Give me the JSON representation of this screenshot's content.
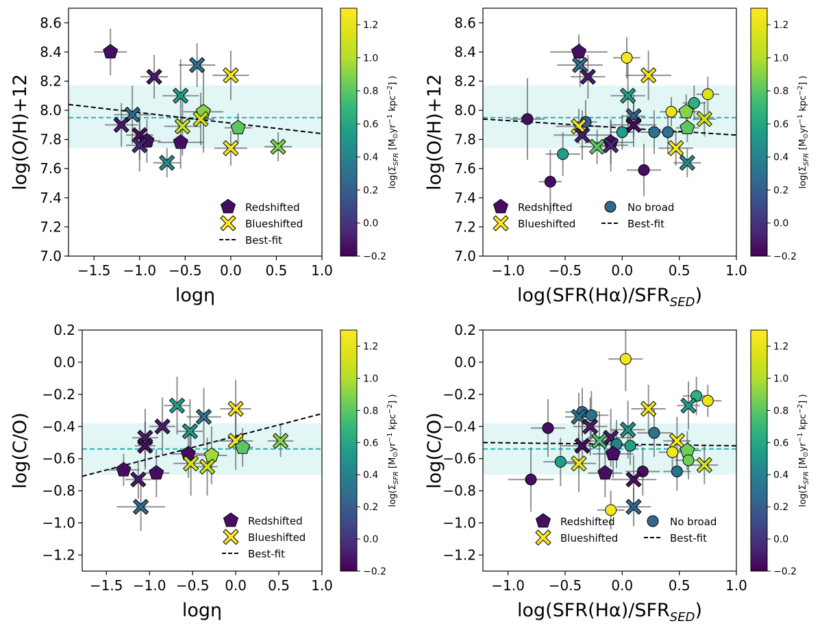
{
  "colorbar": {
    "label": "log(Σ",
    "label_sub": "SFR",
    "label_rest": " [M",
    "label_sun": "⊙",
    "label_tail": "yr",
    "label_exp1": "−1",
    "label_mid": " kpc",
    "label_exp2": "−2",
    "label_end": "] )",
    "range": [
      -0.2,
      1.3
    ],
    "ticks": [
      -0.2,
      0.0,
      0.2,
      0.4,
      0.6,
      0.8,
      1.0,
      1.2
    ],
    "tick_labels": [
      "−0.2",
      "0.0",
      "0.2",
      "0.4",
      "0.6",
      "0.8",
      "1.0",
      "1.2"
    ],
    "colormap": "viridis"
  },
  "legend": {
    "redshifted": "Redshifted",
    "blueshifted": "Blueshifted",
    "no_broad": "No broad",
    "best_fit": "Best-fit"
  },
  "colors": {
    "band_fill": "#e0f5f5",
    "mean_line": "#20b2aa",
    "fit_line": "#000000",
    "errorbar": "#555555"
  },
  "chart_data": [
    {
      "id": "oh-vs-eta",
      "type": "scatter",
      "xlabel": "logη",
      "ylabel": "log(O/H)+12",
      "xlim": [
        -1.78,
        1.0
      ],
      "ylim": [
        7.0,
        8.7
      ],
      "xticks": [
        -1.5,
        -1.0,
        -0.5,
        0.0,
        0.5,
        1.0
      ],
      "xtick_labels": [
        "−1.5",
        "−1.0",
        "−0.5",
        "0.0",
        "0.5",
        "1.0"
      ],
      "yticks": [
        7.0,
        7.2,
        7.4,
        7.6,
        7.8,
        8.0,
        8.2,
        8.4,
        8.6
      ],
      "ytick_labels": [
        "7.0",
        "7.2",
        "7.4",
        "7.6",
        "7.8",
        "8.0",
        "8.2",
        "8.4",
        "8.6"
      ],
      "band": [
        7.74,
        8.17
      ],
      "mean": 7.95,
      "fit": {
        "x0": -1.78,
        "y0": 8.04,
        "x1": 1.0,
        "y1": 7.84
      },
      "legend_items": [
        "redshifted",
        "blueshifted",
        "best_fit"
      ],
      "points": [
        {
          "x": -1.32,
          "y": 8.4,
          "c": -0.15,
          "m": "pentagon",
          "ex": 0.18,
          "ey": 0.16
        },
        {
          "x": -0.84,
          "y": 8.23,
          "c": -0.1,
          "m": "x",
          "ex": 0.15,
          "ey": 0.15
        },
        {
          "x": -0.37,
          "y": 8.31,
          "c": 0.3,
          "m": "x",
          "ex": 0.2,
          "ey": 0.15
        },
        {
          "x": 0.0,
          "y": 8.24,
          "c": 1.25,
          "m": "x",
          "ex": 0.2,
          "ey": 0.17
        },
        {
          "x": -0.55,
          "y": 8.1,
          "c": 0.55,
          "m": "x",
          "ex": 0.2,
          "ey": 0.25
        },
        {
          "x": -1.08,
          "y": 7.97,
          "c": 0.25,
          "m": "x",
          "ex": 0.2,
          "ey": 0.2
        },
        {
          "x": -1.2,
          "y": 7.9,
          "c": -0.1,
          "m": "x",
          "ex": 0.18,
          "ey": 0.15
        },
        {
          "x": -1.0,
          "y": 7.83,
          "c": -0.15,
          "m": "x",
          "ex": 0.15,
          "ey": 0.17
        },
        {
          "x": -0.92,
          "y": 7.79,
          "c": -0.15,
          "m": "pentagon",
          "ex": 0.15,
          "ey": 0.15
        },
        {
          "x": -1.0,
          "y": 7.76,
          "c": -0.05,
          "m": "x",
          "ex": 0.15,
          "ey": 0.18
        },
        {
          "x": -0.7,
          "y": 7.64,
          "c": 0.45,
          "m": "x",
          "ex": 0.15,
          "ey": 0.1
        },
        {
          "x": -0.55,
          "y": 7.78,
          "c": -0.15,
          "m": "pentagon",
          "ex": 0.25,
          "ey": 0.18
        },
        {
          "x": -0.53,
          "y": 7.89,
          "c": 1.05,
          "m": "x",
          "ex": 0.2,
          "ey": 0.2
        },
        {
          "x": -0.3,
          "y": 7.99,
          "c": 0.9,
          "m": "pentagon",
          "ex": 0.22,
          "ey": 0.28
        },
        {
          "x": -0.33,
          "y": 7.94,
          "c": 1.1,
          "m": "x",
          "ex": 0.15,
          "ey": 0.18
        },
        {
          "x": 0.08,
          "y": 7.88,
          "c": 0.8,
          "m": "pentagon",
          "ex": 0.15,
          "ey": 0.1
        },
        {
          "x": 0.0,
          "y": 7.74,
          "c": 1.25,
          "m": "x",
          "ex": 0.18,
          "ey": 0.12
        },
        {
          "x": 0.52,
          "y": 7.75,
          "c": 0.88,
          "m": "x",
          "ex": 0.15,
          "ey": 0.1
        }
      ]
    },
    {
      "id": "oh-vs-sfr",
      "type": "scatter",
      "xlabel": "log(SFR(Hα)/SFR",
      "xlabel_sub": "SED",
      "xlabel_end": ")",
      "ylabel": "log(O/H)+12",
      "xlim": [
        -1.22,
        1.0
      ],
      "ylim": [
        7.0,
        8.7
      ],
      "xticks": [
        -1.0,
        -0.5,
        0.0,
        0.5,
        1.0
      ],
      "xtick_labels": [
        "−1.0",
        "−0.5",
        "0.0",
        "0.5",
        "1.0"
      ],
      "yticks": [
        7.0,
        7.2,
        7.4,
        7.6,
        7.8,
        8.0,
        8.2,
        8.4,
        8.6
      ],
      "ytick_labels": [
        "7.0",
        "7.2",
        "7.4",
        "7.6",
        "7.8",
        "8.0",
        "8.2",
        "8.4",
        "8.6"
      ],
      "band": [
        7.74,
        8.17
      ],
      "mean": 7.95,
      "fit": {
        "x0": -1.22,
        "y0": 7.94,
        "x1": 1.0,
        "y1": 7.83
      },
      "legend_items": [
        "redshifted",
        "no_broad",
        "blueshifted",
        "best_fit"
      ],
      "points": [
        {
          "x": -0.38,
          "y": 8.4,
          "c": -0.15,
          "m": "pentagon",
          "ex": 0.25,
          "ey": 0.12
        },
        {
          "x": -0.37,
          "y": 8.31,
          "c": 0.3,
          "m": "x",
          "ex": 0.2,
          "ey": 0.15
        },
        {
          "x": -0.3,
          "y": 8.23,
          "c": -0.1,
          "m": "x",
          "ex": 0.15,
          "ey": 0.15
        },
        {
          "x": 0.04,
          "y": 8.36,
          "c": 1.25,
          "m": "circle",
          "ex": 0.12,
          "ey": 0.14
        },
        {
          "x": 0.23,
          "y": 8.24,
          "c": 1.25,
          "m": "x",
          "ex": 0.2,
          "ey": 0.17
        },
        {
          "x": 0.05,
          "y": 8.1,
          "c": 0.55,
          "m": "x",
          "ex": 0.15,
          "ey": 0.25
        },
        {
          "x": 0.75,
          "y": 8.11,
          "c": 1.15,
          "m": "circle",
          "ex": 0.1,
          "ey": 0.12
        },
        {
          "x": 0.63,
          "y": 8.05,
          "c": 0.65,
          "m": "circle",
          "ex": 0.1,
          "ey": 0.12
        },
        {
          "x": 0.43,
          "y": 7.99,
          "c": 1.2,
          "m": "circle",
          "ex": 0.1,
          "ey": 0.1
        },
        {
          "x": 0.56,
          "y": 7.99,
          "c": 0.9,
          "m": "pentagon",
          "ex": 0.12,
          "ey": 0.12
        },
        {
          "x": -0.83,
          "y": 7.94,
          "c": -0.15,
          "m": "circle",
          "ex": 0.15,
          "ey": 0.28
        },
        {
          "x": -0.32,
          "y": 7.92,
          "c": 0.2,
          "m": "circle",
          "ex": 0.1,
          "ey": 0.15
        },
        {
          "x": 0.1,
          "y": 7.96,
          "c": 0.2,
          "m": "x",
          "ex": 0.1,
          "ey": 0.15
        },
        {
          "x": 0.1,
          "y": 7.9,
          "c": -0.15,
          "m": "x",
          "ex": 0.2,
          "ey": 0.15
        },
        {
          "x": 0.72,
          "y": 7.94,
          "c": 1.1,
          "m": "x",
          "ex": 0.1,
          "ey": 0.12
        },
        {
          "x": -0.38,
          "y": 7.89,
          "c": 1.2,
          "m": "x",
          "ex": 0.2,
          "ey": 0.12
        },
        {
          "x": -0.35,
          "y": 7.83,
          "c": -0.1,
          "m": "x",
          "ex": 0.25,
          "ey": 0.17
        },
        {
          "x": 0.0,
          "y": 7.85,
          "c": 0.55,
          "m": "circle",
          "ex": 0.1,
          "ey": 0.12
        },
        {
          "x": 0.28,
          "y": 7.85,
          "c": 0.3,
          "m": "circle",
          "ex": 0.12,
          "ey": 0.15
        },
        {
          "x": 0.4,
          "y": 7.85,
          "c": 0.3,
          "m": "circle",
          "ex": 0.15,
          "ey": 0.15
        },
        {
          "x": 0.57,
          "y": 7.88,
          "c": 0.8,
          "m": "pentagon",
          "ex": 0.1,
          "ey": 0.1
        },
        {
          "x": -0.1,
          "y": 7.78,
          "c": -0.15,
          "m": "pentagon",
          "ex": 0.2,
          "ey": 0.15
        },
        {
          "x": -0.22,
          "y": 7.75,
          "c": 0.8,
          "m": "x",
          "ex": 0.15,
          "ey": 0.12
        },
        {
          "x": -0.1,
          "y": 7.76,
          "c": -0.05,
          "m": "x",
          "ex": 0.15,
          "ey": 0.18
        },
        {
          "x": 0.47,
          "y": 7.74,
          "c": 1.25,
          "m": "x",
          "ex": 0.15,
          "ey": 0.12
        },
        {
          "x": -0.52,
          "y": 7.7,
          "c": 0.55,
          "m": "circle",
          "ex": 0.15,
          "ey": 0.15
        },
        {
          "x": 0.57,
          "y": 7.64,
          "c": 0.45,
          "m": "x",
          "ex": 0.12,
          "ey": 0.1
        },
        {
          "x": 0.19,
          "y": 7.59,
          "c": -0.15,
          "m": "circle",
          "ex": 0.15,
          "ey": 0.18
        },
        {
          "x": -0.63,
          "y": 7.51,
          "c": -0.15,
          "m": "circle",
          "ex": 0.1,
          "ey": 0.22
        }
      ]
    },
    {
      "id": "co-vs-eta",
      "type": "scatter",
      "xlabel": "logη",
      "ylabel": "log(C/O)",
      "xlim": [
        -1.78,
        1.0
      ],
      "ylim": [
        -1.3,
        0.2
      ],
      "xticks": [
        -1.5,
        -1.0,
        -0.5,
        0.0,
        0.5,
        1.0
      ],
      "xtick_labels": [
        "−1.5",
        "−1.0",
        "−0.5",
        "0.0",
        "0.5",
        "1.0"
      ],
      "yticks": [
        -1.2,
        -1.0,
        -0.8,
        -0.6,
        -0.4,
        -0.2,
        0.0,
        0.2
      ],
      "ytick_labels": [
        "−1.2",
        "−1.0",
        "−0.8",
        "−0.6",
        "−0.4",
        "−0.2",
        "0.0",
        "0.2"
      ],
      "band": [
        -0.7,
        -0.38
      ],
      "mean": -0.54,
      "fit": {
        "x0": -1.78,
        "y0": -0.71,
        "x1": 1.0,
        "y1": -0.32
      },
      "legend_items": [
        "redshifted",
        "blueshifted",
        "best_fit"
      ],
      "points": [
        {
          "x": -0.68,
          "y": -0.27,
          "c": 0.55,
          "m": "x",
          "ex": 0.15,
          "ey": 0.18
        },
        {
          "x": 0.0,
          "y": -0.29,
          "c": 1.25,
          "m": "x",
          "ex": 0.18,
          "ey": 0.18
        },
        {
          "x": -0.37,
          "y": -0.34,
          "c": 0.3,
          "m": "x",
          "ex": 0.2,
          "ey": 0.18
        },
        {
          "x": -0.85,
          "y": -0.4,
          "c": -0.1,
          "m": "x",
          "ex": 0.15,
          "ey": 0.18
        },
        {
          "x": -0.53,
          "y": -0.43,
          "c": 0.5,
          "m": "x",
          "ex": 0.15,
          "ey": 0.2
        },
        {
          "x": -1.05,
          "y": -0.47,
          "c": -0.1,
          "m": "x",
          "ex": 0.15,
          "ey": 0.18
        },
        {
          "x": -1.05,
          "y": -0.52,
          "c": -0.15,
          "m": "x",
          "ex": 0.12,
          "ey": 0.15
        },
        {
          "x": 0.0,
          "y": -0.49,
          "c": 1.25,
          "m": "x",
          "ex": 0.2,
          "ey": 0.18
        },
        {
          "x": 0.52,
          "y": -0.49,
          "c": 0.9,
          "m": "x",
          "ex": 0.15,
          "ey": 0.1
        },
        {
          "x": 0.08,
          "y": -0.53,
          "c": 0.8,
          "m": "pentagon",
          "ex": 0.12,
          "ey": 0.12
        },
        {
          "x": -0.55,
          "y": -0.57,
          "c": -0.15,
          "m": "pentagon",
          "ex": 0.2,
          "ey": 0.15
        },
        {
          "x": -0.28,
          "y": -0.58,
          "c": 0.95,
          "m": "pentagon",
          "ex": 0.18,
          "ey": 0.18
        },
        {
          "x": -0.52,
          "y": -0.63,
          "c": 1.1,
          "m": "x",
          "ex": 0.2,
          "ey": 0.2
        },
        {
          "x": -0.33,
          "y": -0.65,
          "c": 1.1,
          "m": "x",
          "ex": 0.12,
          "ey": 0.18
        },
        {
          "x": -1.3,
          "y": -0.67,
          "c": -0.15,
          "m": "pentagon",
          "ex": 0.18,
          "ey": 0.1
        },
        {
          "x": -0.92,
          "y": -0.69,
          "c": -0.15,
          "m": "pentagon",
          "ex": 0.15,
          "ey": 0.15
        },
        {
          "x": -1.13,
          "y": -0.73,
          "c": -0.1,
          "m": "x",
          "ex": 0.15,
          "ey": 0.12
        },
        {
          "x": -1.1,
          "y": -0.9,
          "c": 0.25,
          "m": "x",
          "ex": 0.28,
          "ey": 0.15
        }
      ]
    },
    {
      "id": "co-vs-sfr",
      "type": "scatter",
      "xlabel": "log(SFR(Hα)/SFR",
      "xlabel_sub": "SED",
      "xlabel_end": ")",
      "ylabel": "log(C/O)",
      "xlim": [
        -1.22,
        1.0
      ],
      "ylim": [
        -1.3,
        0.2
      ],
      "xticks": [
        -1.0,
        -0.5,
        0.0,
        0.5,
        1.0
      ],
      "xtick_labels": [
        "−1.0",
        "−0.5",
        "0.0",
        "0.5",
        "1.0"
      ],
      "yticks": [
        -1.2,
        -1.0,
        -0.8,
        -0.6,
        -0.4,
        -0.2,
        0.0,
        0.2
      ],
      "ytick_labels": [
        "−1.2",
        "−1.0",
        "−0.8",
        "−0.6",
        "−0.4",
        "−0.2",
        "0.0",
        "0.2"
      ],
      "band": [
        -0.7,
        -0.38
      ],
      "mean": -0.54,
      "fit": {
        "x0": -1.22,
        "y0": -0.5,
        "x1": 1.0,
        "y1": -0.52
      },
      "legend_items": [
        "redshifted",
        "no_broad",
        "blueshifted",
        "best_fit"
      ],
      "points": [
        {
          "x": 0.03,
          "y": 0.02,
          "c": 1.25,
          "m": "circle",
          "ex": 0.15,
          "ey": 0.2
        },
        {
          "x": 0.65,
          "y": -0.21,
          "c": 0.65,
          "m": "circle",
          "ex": 0.12,
          "ey": 0.12
        },
        {
          "x": 0.75,
          "y": -0.24,
          "c": 1.2,
          "m": "circle",
          "ex": 0.12,
          "ey": 0.1
        },
        {
          "x": 0.58,
          "y": -0.27,
          "c": 0.55,
          "m": "x",
          "ex": 0.1,
          "ey": 0.15
        },
        {
          "x": 0.23,
          "y": -0.29,
          "c": 1.25,
          "m": "x",
          "ex": 0.15,
          "ey": 0.15
        },
        {
          "x": -0.35,
          "y": -0.31,
          "c": 0.3,
          "m": "circle",
          "ex": 0.15,
          "ey": 0.15
        },
        {
          "x": -0.27,
          "y": -0.33,
          "c": 0.3,
          "m": "circle",
          "ex": 0.15,
          "ey": 0.15
        },
        {
          "x": -0.38,
          "y": -0.34,
          "c": 0.3,
          "m": "x",
          "ex": 0.12,
          "ey": 0.15
        },
        {
          "x": -0.28,
          "y": -0.4,
          "c": -0.1,
          "m": "x",
          "ex": 0.15,
          "ey": 0.18
        },
        {
          "x": -0.65,
          "y": -0.41,
          "c": -0.15,
          "m": "circle",
          "ex": 0.15,
          "ey": 0.18
        },
        {
          "x": 0.05,
          "y": -0.42,
          "c": 0.5,
          "m": "x",
          "ex": 0.15,
          "ey": 0.18
        },
        {
          "x": 0.28,
          "y": -0.44,
          "c": 0.3,
          "m": "circle",
          "ex": 0.15,
          "ey": 0.15
        },
        {
          "x": -0.1,
          "y": -0.47,
          "c": -0.1,
          "m": "x",
          "ex": 0.2,
          "ey": 0.18
        },
        {
          "x": -0.2,
          "y": -0.49,
          "c": 0.75,
          "m": "x",
          "ex": 0.15,
          "ey": 0.18
        },
        {
          "x": 0.48,
          "y": -0.49,
          "c": 1.25,
          "m": "x",
          "ex": 0.12,
          "ey": 0.15
        },
        {
          "x": -0.05,
          "y": -0.51,
          "c": 0.4,
          "m": "circle",
          "ex": 0.15,
          "ey": 0.15
        },
        {
          "x": -0.35,
          "y": -0.52,
          "c": -0.15,
          "m": "x",
          "ex": 0.18,
          "ey": 0.15
        },
        {
          "x": 0.07,
          "y": -0.52,
          "c": 0.55,
          "m": "circle",
          "ex": 0.1,
          "ey": 0.12
        },
        {
          "x": 0.57,
          "y": -0.55,
          "c": 0.85,
          "m": "pentagon",
          "ex": 0.12,
          "ey": 0.12
        },
        {
          "x": 0.44,
          "y": -0.56,
          "c": 1.25,
          "m": "circle",
          "ex": 0.12,
          "ey": 0.12
        },
        {
          "x": -0.08,
          "y": -0.57,
          "c": -0.15,
          "m": "pentagon",
          "ex": 0.18,
          "ey": 0.15
        },
        {
          "x": -0.54,
          "y": -0.62,
          "c": 0.55,
          "m": "circle",
          "ex": 0.15,
          "ey": 0.15
        },
        {
          "x": -0.38,
          "y": -0.63,
          "c": 1.2,
          "m": "x",
          "ex": 0.15,
          "ey": 0.18
        },
        {
          "x": 0.72,
          "y": -0.64,
          "c": 1.1,
          "m": "x",
          "ex": 0.12,
          "ey": 0.12
        },
        {
          "x": 0.58,
          "y": -0.61,
          "c": 0.85,
          "m": "circle",
          "ex": 0.12,
          "ey": 0.12
        },
        {
          "x": 0.48,
          "y": -0.68,
          "c": 0.3,
          "m": "circle",
          "ex": 0.12,
          "ey": 0.12
        },
        {
          "x": 0.18,
          "y": -0.68,
          "c": -0.15,
          "m": "circle",
          "ex": 0.15,
          "ey": 0.15
        },
        {
          "x": -0.15,
          "y": -0.69,
          "c": -0.15,
          "m": "pentagon",
          "ex": 0.15,
          "ey": 0.15
        },
        {
          "x": 0.1,
          "y": -0.73,
          "c": -0.15,
          "m": "x",
          "ex": 0.2,
          "ey": 0.15
        },
        {
          "x": -0.8,
          "y": -0.73,
          "c": -0.15,
          "m": "circle",
          "ex": 0.2,
          "ey": 0.2
        },
        {
          "x": 0.1,
          "y": -0.9,
          "c": 0.25,
          "m": "x",
          "ex": 0.15,
          "ey": 0.12
        },
        {
          "x": -0.1,
          "y": -0.92,
          "c": 1.25,
          "m": "circle",
          "ex": 0.12,
          "ey": 0.12
        }
      ]
    }
  ]
}
